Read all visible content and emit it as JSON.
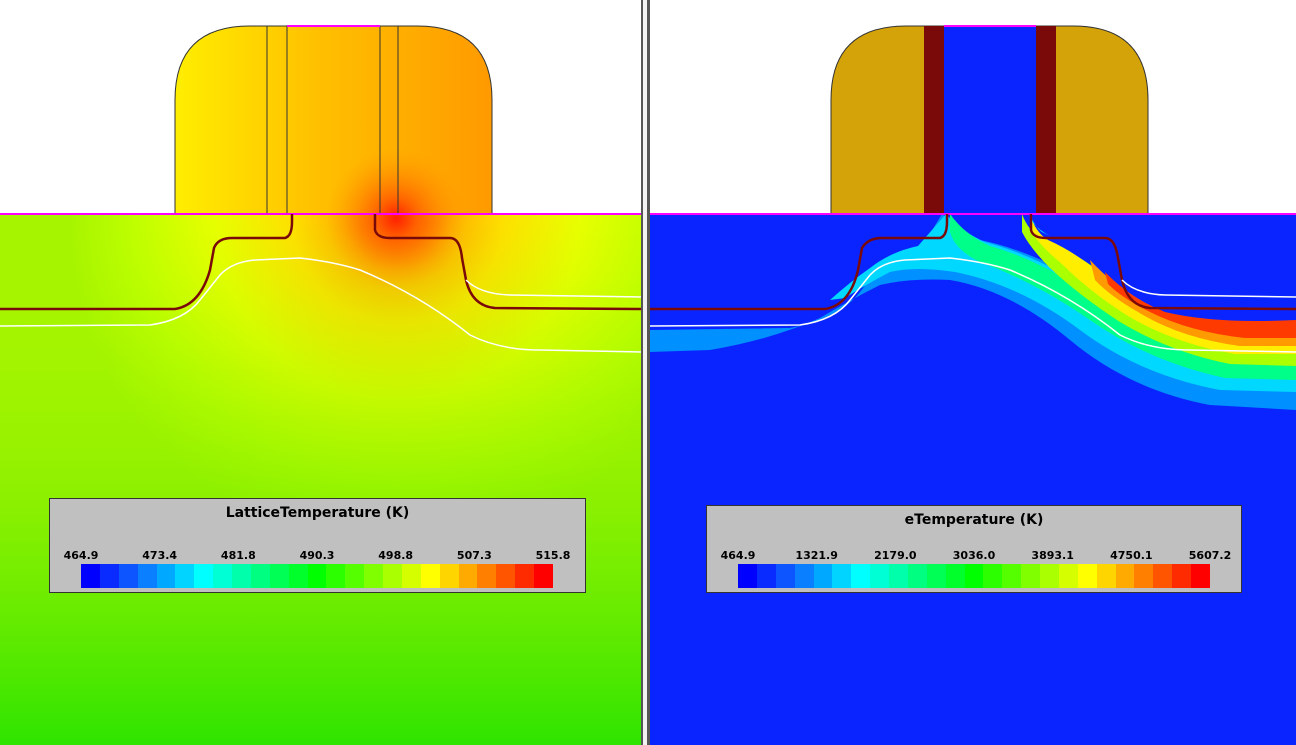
{
  "panels": [
    {
      "legend": {
        "title": "LatticeTemperature (K)",
        "ticks": [
          "464.9",
          "473.4",
          "481.8",
          "490.3",
          "498.8",
          "507.3",
          "515.8"
        ]
      }
    },
    {
      "legend": {
        "title": "eTemperature (K)",
        "ticks": [
          "464.9",
          "1321.9",
          "2179.0",
          "3036.0",
          "3893.1",
          "4750.1",
          "5607.2"
        ]
      }
    }
  ],
  "colormap": [
    "#0000ff",
    "#0a2bff",
    "#0c55ff",
    "#0a7fff",
    "#00a8ff",
    "#00d4ff",
    "#00ffff",
    "#00ffd5",
    "#00ffaa",
    "#00ff80",
    "#00ff55",
    "#00ff2b",
    "#00ff00",
    "#2bff00",
    "#55ff00",
    "#80ff00",
    "#aaff00",
    "#d5ff00",
    "#ffff00",
    "#ffd500",
    "#ffaa00",
    "#ff8000",
    "#ff5500",
    "#ff2b00",
    "#ff0000"
  ],
  "colors": {
    "interface_line": "#ff00ff",
    "junction_line": "#7a0a0a",
    "depletion_edge": "#ffffff",
    "spacer_fill": "#d4a30a",
    "gate_oxide": "#7a0a0a",
    "gate_fill_cold": "#0000ff"
  }
}
